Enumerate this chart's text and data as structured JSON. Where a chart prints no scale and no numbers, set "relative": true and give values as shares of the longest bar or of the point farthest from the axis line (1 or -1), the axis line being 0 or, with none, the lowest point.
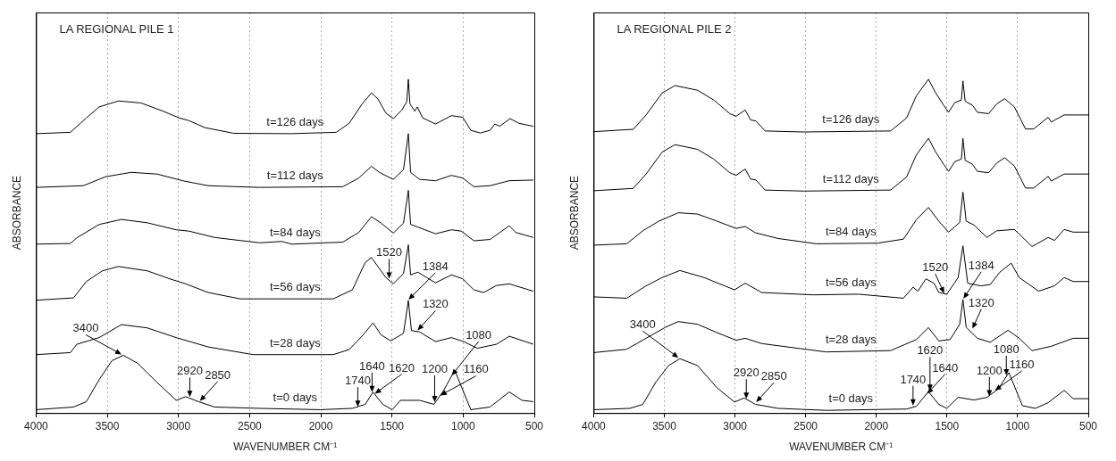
{
  "chart_data": [
    {
      "type": "line",
      "title": "LA REGIONAL PILE 1",
      "xlabel": "WAVENUMBER CM⁻¹",
      "ylabel": "ABSORBANCE",
      "relative": true,
      "xlim": [
        4000,
        500
      ],
      "xticks": [
        4000,
        3500,
        3000,
        2500,
        2000,
        1500,
        1000,
        500
      ],
      "grid": "x",
      "legend": false,
      "marker": "none",
      "line_style": "solid",
      "series": [
        {
          "name": "t=126 days",
          "color": "#000000",
          "x": [
            4000,
            3759,
            3647,
            3557,
            3422,
            3264,
            3106,
            2994,
            2926,
            2814,
            2611,
            2206,
            1891,
            1801,
            1711,
            1644,
            1599,
            1543,
            1491,
            1430,
            1396,
            1385,
            1374,
            1340,
            1322,
            1284,
            1194,
            1082,
            1003,
            946,
            879,
            811,
            777,
            743,
            671,
            608,
            507
          ],
          "values": [
            0.837,
            0.841,
            0.884,
            0.917,
            0.935,
            0.929,
            0.904,
            0.884,
            0.876,
            0.855,
            0.838,
            0.837,
            0.841,
            0.868,
            0.925,
            0.959,
            0.941,
            0.899,
            0.882,
            0.908,
            0.933,
            1.0,
            0.927,
            0.904,
            0.917,
            0.884,
            0.866,
            0.891,
            0.886,
            0.847,
            0.839,
            0.847,
            0.866,
            0.859,
            0.882,
            0.868,
            0.859
          ]
        },
        {
          "name": "t=112 days",
          "color": "#000000",
          "x": [
            4000,
            3669,
            3512,
            3332,
            3151,
            2971,
            2791,
            2431,
            1846,
            1733,
            1644,
            1588,
            1491,
            1419,
            1385,
            1369,
            1306,
            1194,
            1082,
            1003,
            924,
            811,
            676,
            507
          ],
          "values": [
            0.676,
            0.681,
            0.708,
            0.721,
            0.716,
            0.696,
            0.681,
            0.676,
            0.678,
            0.704,
            0.739,
            0.721,
            0.7,
            0.729,
            0.837,
            0.721,
            0.7,
            0.696,
            0.712,
            0.704,
            0.678,
            0.681,
            0.696,
            0.698
          ]
        },
        {
          "name": "t=84 days",
          "color": "#000000",
          "x": [
            4000,
            3759,
            3714,
            3557,
            3400,
            3219,
            3016,
            2926,
            2746,
            2431,
            2274,
            2206,
            1846,
            1733,
            1644,
            1576,
            1491,
            1419,
            1385,
            1369,
            1318,
            1194,
            1082,
            1014,
            924,
            811,
            676,
            631,
            507
          ],
          "values": [
            0.506,
            0.508,
            0.525,
            0.565,
            0.58,
            0.57,
            0.549,
            0.545,
            0.526,
            0.51,
            0.514,
            0.506,
            0.512,
            0.541,
            0.588,
            0.569,
            0.539,
            0.569,
            0.667,
            0.565,
            0.557,
            0.537,
            0.549,
            0.545,
            0.516,
            0.52,
            0.561,
            0.541,
            0.526
          ]
        },
        {
          "name": "t=56 days",
          "color": "#000000",
          "x": [
            4000,
            3737,
            3647,
            3534,
            3422,
            3219,
            3061,
            2949,
            2791,
            2566,
            1913,
            1778,
            1688,
            1644,
            1599,
            1543,
            1491,
            1419,
            1385,
            1369,
            1318,
            1194,
            1082,
            1003,
            924,
            856,
            766,
            676,
            507
          ],
          "values": [
            0.338,
            0.345,
            0.394,
            0.426,
            0.439,
            0.426,
            0.402,
            0.387,
            0.361,
            0.342,
            0.342,
            0.369,
            0.451,
            0.466,
            0.439,
            0.406,
            0.387,
            0.418,
            0.504,
            0.414,
            0.422,
            0.39,
            0.414,
            0.402,
            0.369,
            0.361,
            0.382,
            0.387,
            0.365
          ]
        },
        {
          "name": "t=28 days",
          "color": "#000000",
          "x": [
            4000,
            3759,
            3714,
            3557,
            3400,
            3219,
            3016,
            2791,
            2476,
            1913,
            1801,
            1711,
            1633,
            1576,
            1508,
            1419,
            1385,
            1363,
            1306,
            1194,
            1082,
            996,
            901,
            766,
            676,
            507
          ],
          "values": [
            0.175,
            0.181,
            0.206,
            0.226,
            0.265,
            0.255,
            0.226,
            0.198,
            0.175,
            0.175,
            0.19,
            0.23,
            0.27,
            0.234,
            0.216,
            0.239,
            0.337,
            0.247,
            0.243,
            0.214,
            0.226,
            0.214,
            0.194,
            0.206,
            0.23,
            0.206
          ]
        },
        {
          "name": "t=0 days",
          "color": "#000000",
          "x": [
            4000,
            3737,
            3647,
            3557,
            3467,
            3388,
            3287,
            3151,
            3016,
            2949,
            2859,
            2746,
            2431,
            2004,
            1778,
            1688,
            1633,
            1565,
            1498,
            1441,
            1306,
            1205,
            1138,
            1059,
            946,
            811,
            676,
            586,
            507
          ],
          "values": [
            0.01,
            0.018,
            0.034,
            0.1,
            0.157,
            0.173,
            0.149,
            0.092,
            0.038,
            0.049,
            0.034,
            0.018,
            0.014,
            0.01,
            0.014,
            0.026,
            0.063,
            0.026,
            0.01,
            0.038,
            0.038,
            0.026,
            0.067,
            0.128,
            0.01,
            0.018,
            0.063,
            0.038,
            0.034
          ]
        }
      ],
      "annotations": [
        {
          "text": "3400",
          "x": 3400,
          "y": 0.173
        },
        {
          "text": "2920",
          "x": 2920,
          "y": 0.045
        },
        {
          "text": "2850",
          "x": 2850,
          "y": 0.033
        },
        {
          "text": "1740",
          "x": 1740,
          "y": 0.016
        },
        {
          "text": "1640",
          "x": 1640,
          "y": 0.06
        },
        {
          "text": "1620",
          "x": 1620,
          "y": 0.055
        },
        {
          "text": "1200",
          "x": 1200,
          "y": 0.03
        },
        {
          "text": "1160",
          "x": 1160,
          "y": 0.05
        },
        {
          "text": "1080",
          "x": 1080,
          "y": 0.11
        },
        {
          "text": "1520",
          "x": 1520,
          "y": 0.4
        },
        {
          "text": "1384",
          "x": 1384,
          "y": 0.337
        },
        {
          "text": "1320",
          "x": 1320,
          "y": 0.245
        }
      ]
    },
    {
      "type": "line",
      "title": "LA REGIONAL PILE 2",
      "xlabel": "WAVENUMBER CM⁻¹",
      "ylabel": "ABSORBANCE",
      "relative": true,
      "xlim": [
        4000,
        500
      ],
      "xticks": [
        4000,
        3500,
        3000,
        2500,
        2000,
        1500,
        1000,
        500
      ],
      "grid": "x",
      "legend": false,
      "marker": "none",
      "line_style": "solid",
      "series": [
        {
          "name": "t=126 days",
          "color": "#000000",
          "x": [
            4000,
            3720,
            3629,
            3515,
            3424,
            3265,
            3151,
            3037,
            2992,
            2928,
            2889,
            2851,
            2787,
            2514,
            1899,
            1786,
            1717,
            1631,
            1580,
            1523,
            1489,
            1444,
            1398,
            1387,
            1371,
            1319,
            1285,
            1205,
            1148,
            1092,
            1023,
            944,
            887,
            784,
            762,
            671,
            607,
            500
          ],
          "values": [
            0.843,
            0.85,
            0.893,
            0.959,
            0.981,
            0.967,
            0.938,
            0.897,
            0.889,
            0.908,
            0.878,
            0.875,
            0.845,
            0.842,
            0.845,
            0.884,
            0.95,
            1.0,
            0.959,
            0.922,
            0.901,
            0.93,
            0.938,
            0.995,
            0.934,
            0.922,
            0.901,
            0.897,
            0.926,
            0.942,
            0.917,
            0.851,
            0.851,
            0.886,
            0.872,
            0.893,
            0.893,
            0.893
          ]
        },
        {
          "name": "t=112 days",
          "color": "#000000",
          "x": [
            4000,
            3720,
            3629,
            3515,
            3424,
            3265,
            3151,
            3037,
            2992,
            2928,
            2889,
            2851,
            2787,
            2514,
            1899,
            1786,
            1717,
            1631,
            1580,
            1523,
            1489,
            1444,
            1398,
            1387,
            1371,
            1319,
            1285,
            1205,
            1148,
            1092,
            1023,
            944,
            887,
            784,
            762,
            671,
            607,
            500
          ],
          "values": [
            0.666,
            0.673,
            0.716,
            0.782,
            0.804,
            0.79,
            0.761,
            0.72,
            0.712,
            0.731,
            0.701,
            0.698,
            0.668,
            0.665,
            0.668,
            0.707,
            0.773,
            0.823,
            0.782,
            0.745,
            0.724,
            0.753,
            0.761,
            0.823,
            0.757,
            0.745,
            0.724,
            0.72,
            0.749,
            0.765,
            0.74,
            0.674,
            0.674,
            0.709,
            0.695,
            0.716,
            0.716,
            0.716
          ]
        },
        {
          "name": "t=84 days",
          "color": "#000000",
          "x": [
            4000,
            3766,
            3652,
            3538,
            3401,
            3265,
            3128,
            2992,
            2928,
            2855,
            2696,
            2423,
            1990,
            1808,
            1717,
            1631,
            1558,
            1489,
            1410,
            1387,
            1364,
            1308,
            1217,
            1148,
            1023,
            898,
            784,
            739,
            671,
            607,
            500
          ],
          "values": [
            0.503,
            0.507,
            0.546,
            0.575,
            0.6,
            0.596,
            0.575,
            0.553,
            0.559,
            0.54,
            0.523,
            0.507,
            0.509,
            0.521,
            0.579,
            0.616,
            0.575,
            0.542,
            0.571,
            0.662,
            0.575,
            0.563,
            0.526,
            0.546,
            0.55,
            0.499,
            0.526,
            0.517,
            0.55,
            0.542,
            0.542
          ]
        },
        {
          "name": "t=56 days",
          "color": "#000000",
          "x": [
            4000,
            3766,
            3629,
            3515,
            3390,
            3219,
            3003,
            2928,
            2810,
            2446,
            2127,
            1808,
            1740,
            1706,
            1649,
            1592,
            1558,
            1501,
            1421,
            1387,
            1353,
            1262,
            1194,
            1126,
            1046,
            989,
            852,
            739,
            671,
            607,
            500
          ],
          "values": [
            0.348,
            0.344,
            0.381,
            0.406,
            0.427,
            0.406,
            0.369,
            0.389,
            0.361,
            0.354,
            0.356,
            0.344,
            0.377,
            0.365,
            0.402,
            0.389,
            0.361,
            0.356,
            0.406,
            0.501,
            0.389,
            0.381,
            0.385,
            0.422,
            0.449,
            0.406,
            0.365,
            0.381,
            0.406,
            0.394,
            0.394
          ]
        },
        {
          "name": "t=28 days",
          "color": "#000000",
          "x": [
            4000,
            3766,
            3629,
            3492,
            3401,
            3265,
            3128,
            2992,
            2928,
            2810,
            2355,
            1899,
            1717,
            1631,
            1558,
            1478,
            1410,
            1387,
            1364,
            1285,
            1194,
            1068,
            989,
            898,
            762,
            607,
            500
          ],
          "values": [
            0.181,
            0.191,
            0.224,
            0.257,
            0.274,
            0.266,
            0.241,
            0.218,
            0.224,
            0.208,
            0.183,
            0.187,
            0.22,
            0.256,
            0.216,
            0.22,
            0.266,
            0.34,
            0.257,
            0.224,
            0.212,
            0.248,
            0.224,
            0.187,
            0.2,
            0.224,
            0.224
          ]
        },
        {
          "name": "t=0 days",
          "color": "#000000",
          "x": [
            4000,
            3743,
            3652,
            3561,
            3470,
            3390,
            3265,
            3128,
            3003,
            2935,
            2855,
            2696,
            2355,
            1786,
            1717,
            1631,
            1558,
            1501,
            1421,
            1308,
            1217,
            1137,
            1062,
            966,
            875,
            784,
            671,
            607,
            500
          ],
          "values": [
            0.01,
            0.014,
            0.026,
            0.092,
            0.142,
            0.163,
            0.142,
            0.076,
            0.033,
            0.045,
            0.026,
            0.014,
            0.008,
            0.012,
            0.02,
            0.064,
            0.026,
            0.014,
            0.047,
            0.039,
            0.047,
            0.072,
            0.121,
            0.022,
            0.014,
            0.031,
            0.068,
            0.043,
            0.043
          ]
        }
      ],
      "annotations": [
        {
          "text": "3400",
          "x": 3400,
          "y": 0.163
        },
        {
          "text": "2920",
          "x": 2920,
          "y": 0.04
        },
        {
          "text": "2850",
          "x": 2850,
          "y": 0.03
        },
        {
          "text": "1740",
          "x": 1740,
          "y": 0.02
        },
        {
          "text": "1640",
          "x": 1640,
          "y": 0.055
        },
        {
          "text": "1620",
          "x": 1620,
          "y": 0.064
        },
        {
          "text": "1200",
          "x": 1200,
          "y": 0.047
        },
        {
          "text": "1160",
          "x": 1160,
          "y": 0.065
        },
        {
          "text": "1080",
          "x": 1080,
          "y": 0.11
        },
        {
          "text": "1520",
          "x": 1520,
          "y": 0.356
        },
        {
          "text": "1384",
          "x": 1384,
          "y": 0.34
        },
        {
          "text": "1320",
          "x": 1320,
          "y": 0.25
        }
      ]
    }
  ]
}
